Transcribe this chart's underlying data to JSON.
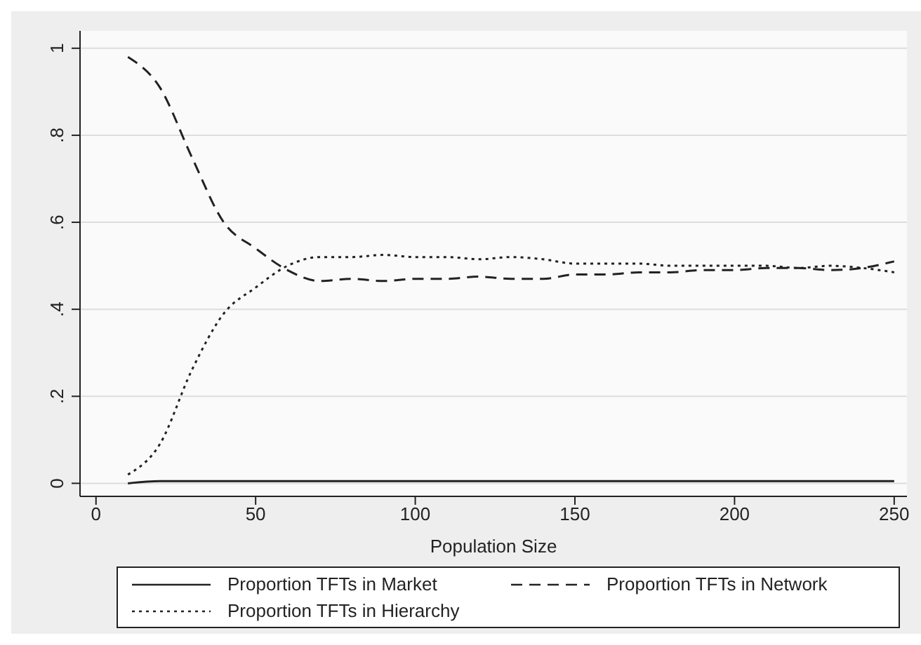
{
  "chart_data": {
    "type": "line",
    "xlabel": "Population Size",
    "x": [
      10,
      20,
      30,
      40,
      50,
      60,
      70,
      80,
      90,
      100,
      110,
      120,
      130,
      140,
      150,
      160,
      170,
      180,
      190,
      200,
      210,
      220,
      230,
      240,
      250
    ],
    "series": [
      {
        "name": "Proportion TFTs in Market",
        "color": "#222222",
        "line_style": "solid",
        "values": [
          0,
          0.005,
          0.005,
          0.005,
          0.005,
          0.005,
          0.005,
          0.005,
          0.005,
          0.005,
          0.005,
          0.005,
          0.005,
          0.005,
          0.005,
          0.005,
          0.005,
          0.005,
          0.005,
          0.005,
          0.005,
          0.005,
          0.005,
          0.005,
          0.005
        ]
      },
      {
        "name": "Proportion TFTs in Network",
        "color": "#222222",
        "line_style": "dashed",
        "values": [
          0.98,
          0.91,
          0.75,
          0.6,
          0.54,
          0.49,
          0.465,
          0.47,
          0.465,
          0.47,
          0.47,
          0.475,
          0.47,
          0.47,
          0.48,
          0.48,
          0.485,
          0.485,
          0.49,
          0.49,
          0.495,
          0.495,
          0.49,
          0.495,
          0.51
        ]
      },
      {
        "name": "Proportion TFTs in Hierarchy",
        "color": "#222222",
        "line_style": "dotted",
        "values": [
          0.02,
          0.09,
          0.26,
          0.39,
          0.45,
          0.5,
          0.52,
          0.52,
          0.525,
          0.52,
          0.52,
          0.515,
          0.52,
          0.515,
          0.505,
          0.505,
          0.505,
          0.5,
          0.5,
          0.5,
          0.5,
          0.495,
          0.5,
          0.495,
          0.485
        ]
      }
    ],
    "xlim": [
      -5,
      254
    ],
    "xticks": [
      0,
      50,
      100,
      150,
      200,
      250
    ],
    "ylim": [
      -0.03,
      1.04
    ],
    "yticks": [
      0,
      {
        "value": 0.2,
        "label": ".2"
      },
      {
        "value": 0.4,
        "label": ".4"
      },
      {
        "value": 0.6,
        "label": ".6"
      },
      {
        "value": 0.8,
        "label": ".8"
      },
      1
    ],
    "grid": "y",
    "legend": "bottom",
    "marker": "none"
  }
}
